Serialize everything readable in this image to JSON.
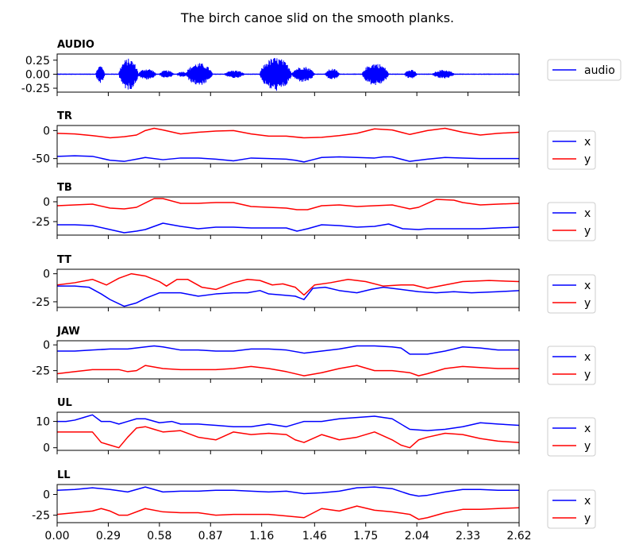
{
  "chart_data": {
    "type": "line",
    "title": "The birch canoe slid on the smooth planks.",
    "xlim": [
      0,
      2.62
    ],
    "x_ticks": [
      "0.00",
      "0.29",
      "0.58",
      "0.87",
      "1.16",
      "1.46",
      "1.75",
      "2.04",
      "2.33",
      "2.62"
    ],
    "colors": {
      "x": "#0000ff",
      "y": "#ff0000",
      "audio": "#0000ff"
    },
    "legend_placement": "right",
    "panels": [
      {
        "name": "AUDIO",
        "ylim": [
          -0.32,
          0.36
        ],
        "y_ticks": [
          "0.25",
          "0.00",
          "-0.25"
        ],
        "y_tick_values": [
          0.25,
          0,
          -0.25
        ],
        "audio_segments": [
          {
            "t0": 0.22,
            "t1": 0.27,
            "amp": 0.16
          },
          {
            "t0": 0.35,
            "t1": 0.46,
            "amp": 0.28
          },
          {
            "t0": 0.46,
            "t1": 0.56,
            "amp": 0.1
          },
          {
            "t0": 0.58,
            "t1": 0.66,
            "amp": 0.07
          },
          {
            "t0": 0.68,
            "t1": 0.74,
            "amp": 0.05
          },
          {
            "t0": 0.73,
            "t1": 0.88,
            "amp": 0.2
          },
          {
            "t0": 0.95,
            "t1": 1.06,
            "amp": 0.07
          },
          {
            "t0": 1.15,
            "t1": 1.33,
            "amp": 0.3
          },
          {
            "t0": 1.33,
            "t1": 1.46,
            "amp": 0.14
          },
          {
            "t0": 1.52,
            "t1": 1.6,
            "amp": 0.1
          },
          {
            "t0": 1.73,
            "t1": 1.88,
            "amp": 0.2
          },
          {
            "t0": 1.97,
            "t1": 2.04,
            "amp": 0.08
          },
          {
            "t0": 2.13,
            "t1": 2.25,
            "amp": 0.08
          }
        ],
        "series": [
          {
            "name": "audio",
            "color": "#0000ff"
          }
        ]
      },
      {
        "name": "TR",
        "ylim": [
          -59,
          9
        ],
        "y_ticks": [
          "0",
          "-50"
        ],
        "y_tick_values": [
          0,
          -50
        ],
        "series": [
          {
            "name": "x",
            "color": "#0000ff",
            "t": [
              0,
              0.1,
              0.2,
              0.3,
              0.38,
              0.45,
              0.5,
              0.6,
              0.7,
              0.8,
              0.9,
              1.0,
              1.1,
              1.2,
              1.3,
              1.35,
              1.4,
              1.45,
              1.5,
              1.6,
              1.7,
              1.8,
              1.85,
              1.9,
              2.0,
              2.1,
              2.2,
              2.3,
              2.4,
              2.5,
              2.62
            ],
            "v": [
              -46,
              -45,
              -46,
              -53,
              -55,
              -51,
              -48,
              -52,
              -49,
              -49,
              -51,
              -54,
              -49,
              -50,
              -51,
              -53,
              -56,
              -52,
              -48,
              -47,
              -48,
              -49,
              -47,
              -47,
              -55,
              -51,
              -48,
              -49,
              -50,
              -50,
              -50
            ]
          },
          {
            "name": "y",
            "color": "#ff0000",
            "t": [
              0,
              0.1,
              0.2,
              0.3,
              0.38,
              0.45,
              0.5,
              0.55,
              0.6,
              0.7,
              0.8,
              0.9,
              1.0,
              1.1,
              1.2,
              1.3,
              1.4,
              1.5,
              1.6,
              1.7,
              1.8,
              1.9,
              2.0,
              2.1,
              2.2,
              2.3,
              2.4,
              2.5,
              2.62
            ],
            "v": [
              -5,
              -6,
              -9,
              -13,
              -11,
              -8,
              0,
              4,
              1,
              -6,
              -3,
              -1,
              0,
              -6,
              -10,
              -10,
              -13,
              -12,
              -9,
              -5,
              3,
              1,
              -7,
              0,
              4,
              -3,
              -8,
              -5,
              -3
            ]
          }
        ]
      },
      {
        "name": "TB",
        "ylim": [
          -42,
          6
        ],
        "y_ticks": [
          "0",
          "-25"
        ],
        "y_tick_values": [
          0,
          -25
        ],
        "series": [
          {
            "name": "x",
            "color": "#0000ff",
            "t": [
              0,
              0.1,
              0.2,
              0.3,
              0.38,
              0.45,
              0.5,
              0.6,
              0.7,
              0.8,
              0.9,
              1.0,
              1.1,
              1.2,
              1.3,
              1.36,
              1.42,
              1.5,
              1.6,
              1.7,
              1.8,
              1.88,
              1.96,
              2.05,
              2.1,
              2.2,
              2.3,
              2.4,
              2.5,
              2.62
            ],
            "v": [
              -29,
              -29,
              -30,
              -35,
              -39,
              -37,
              -35,
              -27,
              -31,
              -34,
              -32,
              -32,
              -33,
              -33,
              -33,
              -37,
              -34,
              -29,
              -30,
              -32,
              -31,
              -28,
              -34,
              -35,
              -34,
              -34,
              -34,
              -34,
              -33,
              -32
            ]
          },
          {
            "name": "y",
            "color": "#ff0000",
            "t": [
              0,
              0.1,
              0.2,
              0.3,
              0.38,
              0.45,
              0.55,
              0.6,
              0.7,
              0.8,
              0.9,
              1.0,
              1.1,
              1.2,
              1.3,
              1.36,
              1.42,
              1.5,
              1.6,
              1.7,
              1.8,
              1.9,
              2.0,
              2.05,
              2.15,
              2.25,
              2.3,
              2.4,
              2.5,
              2.62
            ],
            "v": [
              -5,
              -4,
              -3,
              -8,
              -9,
              -7,
              4,
              4,
              -2,
              -2,
              -1,
              -1,
              -6,
              -7,
              -8,
              -10,
              -10,
              -5,
              -4,
              -6,
              -5,
              -4,
              -9,
              -7,
              3,
              2,
              -1,
              -4,
              -3,
              -2
            ]
          }
        ]
      },
      {
        "name": "TT",
        "ylim": [
          -30,
          4
        ],
        "y_ticks": [
          "0",
          "-25"
        ],
        "y_tick_values": [
          0,
          -25
        ],
        "series": [
          {
            "name": "x",
            "color": "#0000ff",
            "t": [
              0,
              0.1,
              0.18,
              0.25,
              0.3,
              0.38,
              0.45,
              0.5,
              0.58,
              0.7,
              0.8,
              0.9,
              1.0,
              1.08,
              1.15,
              1.2,
              1.28,
              1.35,
              1.4,
              1.45,
              1.52,
              1.6,
              1.7,
              1.78,
              1.85,
              1.95,
              2.05,
              2.15,
              2.25,
              2.35,
              2.5,
              2.62
            ],
            "v": [
              -11,
              -11,
              -12,
              -18,
              -23,
              -29,
              -26,
              -22,
              -17,
              -17,
              -20,
              -18,
              -17,
              -17,
              -15,
              -18,
              -19,
              -20,
              -23,
              -13,
              -12,
              -15,
              -17,
              -14,
              -12,
              -14,
              -16,
              -17,
              -16,
              -17,
              -16,
              -15
            ]
          },
          {
            "name": "y",
            "color": "#ff0000",
            "t": [
              0,
              0.1,
              0.2,
              0.28,
              0.35,
              0.42,
              0.5,
              0.58,
              0.62,
              0.68,
              0.74,
              0.82,
              0.9,
              1.0,
              1.08,
              1.15,
              1.22,
              1.28,
              1.35,
              1.4,
              1.46,
              1.55,
              1.65,
              1.75,
              1.85,
              1.95,
              2.02,
              2.1,
              2.2,
              2.3,
              2.45,
              2.62
            ],
            "v": [
              -10,
              -8,
              -5,
              -10,
              -4,
              0,
              -2,
              -7,
              -11,
              -5,
              -5,
              -12,
              -14,
              -8,
              -5,
              -6,
              -10,
              -9,
              -12,
              -19,
              -10,
              -8,
              -5,
              -7,
              -11,
              -10,
              -10,
              -13,
              -10,
              -7,
              -6,
              -7
            ]
          }
        ]
      },
      {
        "name": "JAW",
        "ylim": [
          -33,
          4
        ],
        "y_ticks": [
          "0",
          "-25"
        ],
        "y_tick_values": [
          0,
          -25
        ],
        "series": [
          {
            "name": "x",
            "color": "#0000ff",
            "t": [
              0,
              0.1,
              0.2,
              0.3,
              0.4,
              0.5,
              0.55,
              0.6,
              0.7,
              0.8,
              0.9,
              1.0,
              1.1,
              1.2,
              1.3,
              1.4,
              1.5,
              1.6,
              1.7,
              1.8,
              1.9,
              1.95,
              2.0,
              2.1,
              2.2,
              2.3,
              2.4,
              2.5,
              2.62
            ],
            "v": [
              -6,
              -6,
              -5,
              -4,
              -4,
              -2,
              -1,
              -2,
              -5,
              -5,
              -6,
              -6,
              -4,
              -4,
              -5,
              -8,
              -6,
              -4,
              -1,
              -1,
              -2,
              -3,
              -9,
              -9,
              -6,
              -2,
              -3,
              -5,
              -5
            ]
          },
          {
            "name": "y",
            "color": "#ff0000",
            "t": [
              0,
              0.1,
              0.2,
              0.3,
              0.35,
              0.4,
              0.45,
              0.5,
              0.6,
              0.7,
              0.8,
              0.9,
              1.0,
              1.1,
              1.2,
              1.3,
              1.4,
              1.5,
              1.6,
              1.7,
              1.8,
              1.9,
              2.0,
              2.05,
              2.1,
              2.2,
              2.3,
              2.4,
              2.5,
              2.62
            ],
            "v": [
              -28,
              -26,
              -24,
              -24,
              -24,
              -26,
              -25,
              -20,
              -23,
              -24,
              -24,
              -24,
              -23,
              -21,
              -23,
              -26,
              -30,
              -27,
              -23,
              -20,
              -25,
              -25,
              -27,
              -30,
              -28,
              -23,
              -21,
              -22,
              -23,
              -23
            ]
          }
        ]
      },
      {
        "name": "UL",
        "ylim": [
          -1,
          13.5
        ],
        "y_ticks": [
          "10",
          "0"
        ],
        "y_tick_values": [
          10,
          0
        ],
        "series": [
          {
            "name": "x",
            "color": "#0000ff",
            "t": [
              0,
              0.05,
              0.1,
              0.15,
              0.2,
              0.25,
              0.3,
              0.35,
              0.4,
              0.45,
              0.5,
              0.58,
              0.65,
              0.7,
              0.8,
              0.9,
              1.0,
              1.1,
              1.2,
              1.3,
              1.4,
              1.5,
              1.6,
              1.7,
              1.8,
              1.9,
              2.0,
              2.1,
              2.2,
              2.3,
              2.4,
              2.5,
              2.62
            ],
            "v": [
              10,
              10,
              10.5,
              11.5,
              12.5,
              10,
              10,
              9,
              10,
              11,
              11,
              9.5,
              10,
              9,
              9,
              8.5,
              8,
              8,
              9,
              8,
              10,
              10,
              11,
              11.5,
              12,
              11,
              7,
              6.5,
              7,
              8,
              9.5,
              9,
              8.5
            ]
          },
          {
            "name": "y",
            "color": "#ff0000",
            "t": [
              0,
              0.1,
              0.2,
              0.25,
              0.3,
              0.35,
              0.4,
              0.45,
              0.5,
              0.55,
              0.6,
              0.7,
              0.8,
              0.9,
              1.0,
              1.1,
              1.2,
              1.3,
              1.35,
              1.4,
              1.5,
              1.6,
              1.7,
              1.8,
              1.9,
              1.95,
              2.0,
              2.05,
              2.1,
              2.2,
              2.3,
              2.4,
              2.5,
              2.62
            ],
            "v": [
              6,
              6,
              6,
              2,
              1,
              0,
              4,
              7.5,
              8,
              7,
              6,
              6.5,
              4,
              3,
              6,
              5,
              5.5,
              5,
              3,
              2,
              5,
              3,
              4,
              6,
              3,
              1,
              0,
              3,
              4,
              5.5,
              5,
              3.5,
              2.5,
              2
            ]
          }
        ]
      },
      {
        "name": "LL",
        "ylim": [
          -34,
          12
        ],
        "y_ticks": [
          "0",
          "-25"
        ],
        "y_tick_values": [
          0,
          -25
        ],
        "series": [
          {
            "name": "x",
            "color": "#0000ff",
            "t": [
              0,
              0.1,
              0.2,
              0.3,
              0.4,
              0.5,
              0.6,
              0.7,
              0.8,
              0.9,
              1.0,
              1.1,
              1.2,
              1.3,
              1.4,
              1.5,
              1.6,
              1.7,
              1.8,
              1.9,
              2.0,
              2.05,
              2.1,
              2.2,
              2.3,
              2.4,
              2.5,
              2.62
            ],
            "v": [
              5,
              6,
              8,
              6,
              3,
              9,
              3,
              4,
              4,
              5,
              5,
              4,
              3,
              4,
              1,
              2,
              4,
              8,
              9,
              7,
              0,
              -2,
              -1,
              3,
              6,
              6,
              5,
              5
            ]
          },
          {
            "name": "y",
            "color": "#ff0000",
            "t": [
              0,
              0.1,
              0.2,
              0.25,
              0.3,
              0.35,
              0.4,
              0.5,
              0.6,
              0.7,
              0.8,
              0.9,
              1.0,
              1.1,
              1.2,
              1.3,
              1.4,
              1.5,
              1.6,
              1.7,
              1.8,
              1.9,
              2.0,
              2.05,
              2.1,
              2.2,
              2.3,
              2.4,
              2.5,
              2.62
            ],
            "v": [
              -24,
              -22,
              -20,
              -17,
              -20,
              -25,
              -25,
              -17,
              -21,
              -22,
              -22,
              -25,
              -24,
              -24,
              -24,
              -26,
              -28,
              -17,
              -20,
              -14,
              -19,
              -21,
              -24,
              -30,
              -28,
              -22,
              -18,
              -18,
              -17,
              -16
            ]
          }
        ]
      }
    ]
  }
}
